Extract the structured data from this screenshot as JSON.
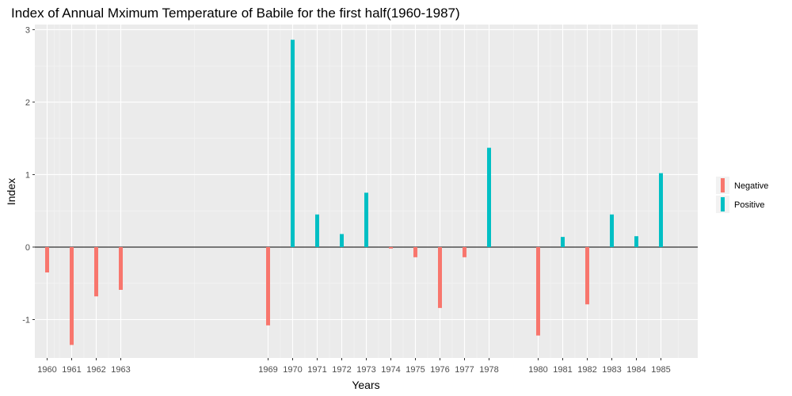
{
  "chart_data": {
    "type": "bar",
    "title": "Index of Annual Mximum Temperature of Babile for the first half(1960-1987)",
    "xlabel": "Years",
    "ylabel": "Index",
    "x": [
      1960,
      1961,
      1962,
      1963,
      1969,
      1970,
      1971,
      1972,
      1973,
      1974,
      1975,
      1976,
      1977,
      1978,
      1980,
      1981,
      1982,
      1983,
      1984,
      1985
    ],
    "values": [
      -0.35,
      -1.35,
      -0.68,
      -0.59,
      -1.08,
      2.86,
      0.45,
      0.18,
      0.75,
      -0.02,
      -0.14,
      -0.84,
      -0.14,
      1.37,
      -1.22,
      0.14,
      -0.79,
      0.45,
      0.15,
      1.02
    ],
    "xlim": [
      1959.5,
      1986.5
    ],
    "ylim": [
      -1.53,
      3.07
    ],
    "yticks": [
      -1,
      0,
      1,
      2,
      3
    ],
    "grid": true,
    "hline": 0,
    "legend": {
      "position": "right",
      "entries": [
        {
          "name": "Negative",
          "color": "#F8766D"
        },
        {
          "name": "Positive",
          "color": "#00BFC4"
        }
      ]
    },
    "colors": {
      "negative": "#F8766D",
      "positive": "#00BFC4",
      "panel": "#EBEBEB",
      "grid": "#FFFFFF"
    }
  }
}
